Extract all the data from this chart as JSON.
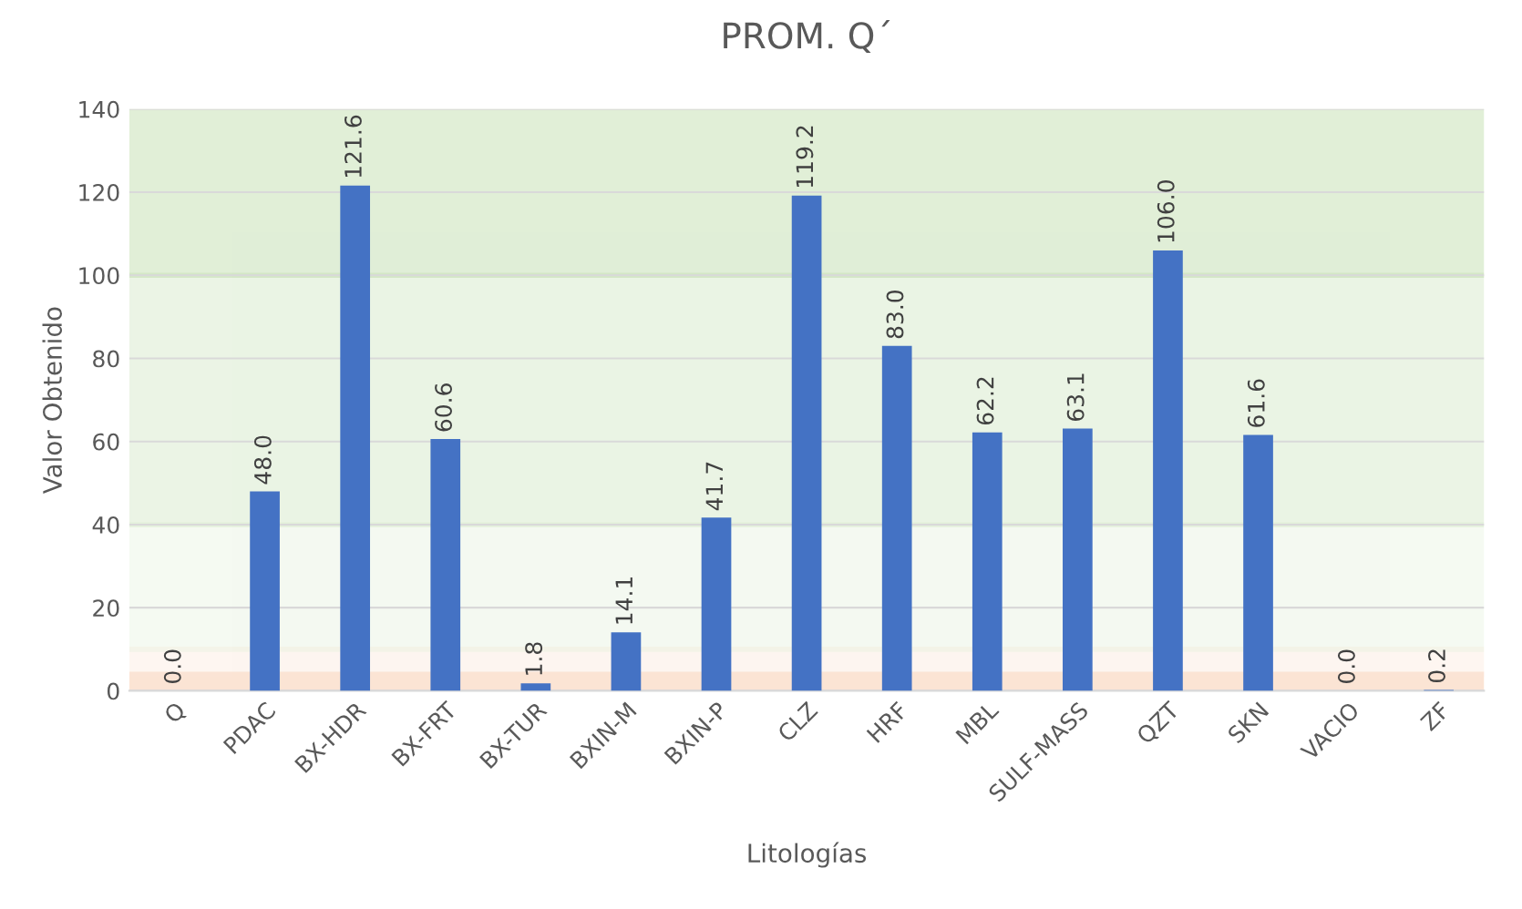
{
  "chart_data": {
    "type": "bar",
    "title": "PROM. Q´",
    "xlabel": "Litologías",
    "ylabel": "Valor Obtenido",
    "categories": [
      "Q",
      "PDAC",
      "BX-HDR",
      "BX-FRT",
      "BX-TUR",
      "BXIN-M",
      "BXIN-P",
      "CLZ",
      "HRF",
      "MBL",
      "SULF-MASS",
      "QZT",
      "SKN",
      "VACIO",
      "ZF"
    ],
    "values": [
      0.0,
      48.0,
      121.6,
      60.6,
      1.8,
      14.1,
      41.7,
      119.2,
      83.0,
      62.2,
      63.1,
      106.0,
      61.6,
      0.0,
      0.2
    ],
    "value_labels": [
      "0.0",
      "48.0",
      "121.6",
      "60.6",
      "1.8",
      "14.1",
      "41.7",
      "119.2",
      "83.0",
      "62.2",
      "63.1",
      "106.0",
      "61.6",
      "0.0",
      "0.2"
    ],
    "color": "#4472c4",
    "ylim": [
      0,
      140
    ],
    "yticks": [
      0,
      20,
      40,
      60,
      80,
      100,
      120,
      140
    ],
    "grid": "y",
    "bands": [
      {
        "axis": "y",
        "from": 0,
        "to": 4,
        "color": "#f4b183"
      },
      {
        "axis": "y",
        "from": 4,
        "to": 10,
        "color": "#fbe5d6"
      },
      {
        "axis": "y",
        "from": 10,
        "to": 40,
        "color": "#e2f0d9"
      },
      {
        "axis": "y",
        "from": 40,
        "to": 100,
        "color": "#c5e0b4"
      },
      {
        "axis": "y",
        "from": 100,
        "to": 140,
        "color": "#a9d18e"
      }
    ]
  }
}
